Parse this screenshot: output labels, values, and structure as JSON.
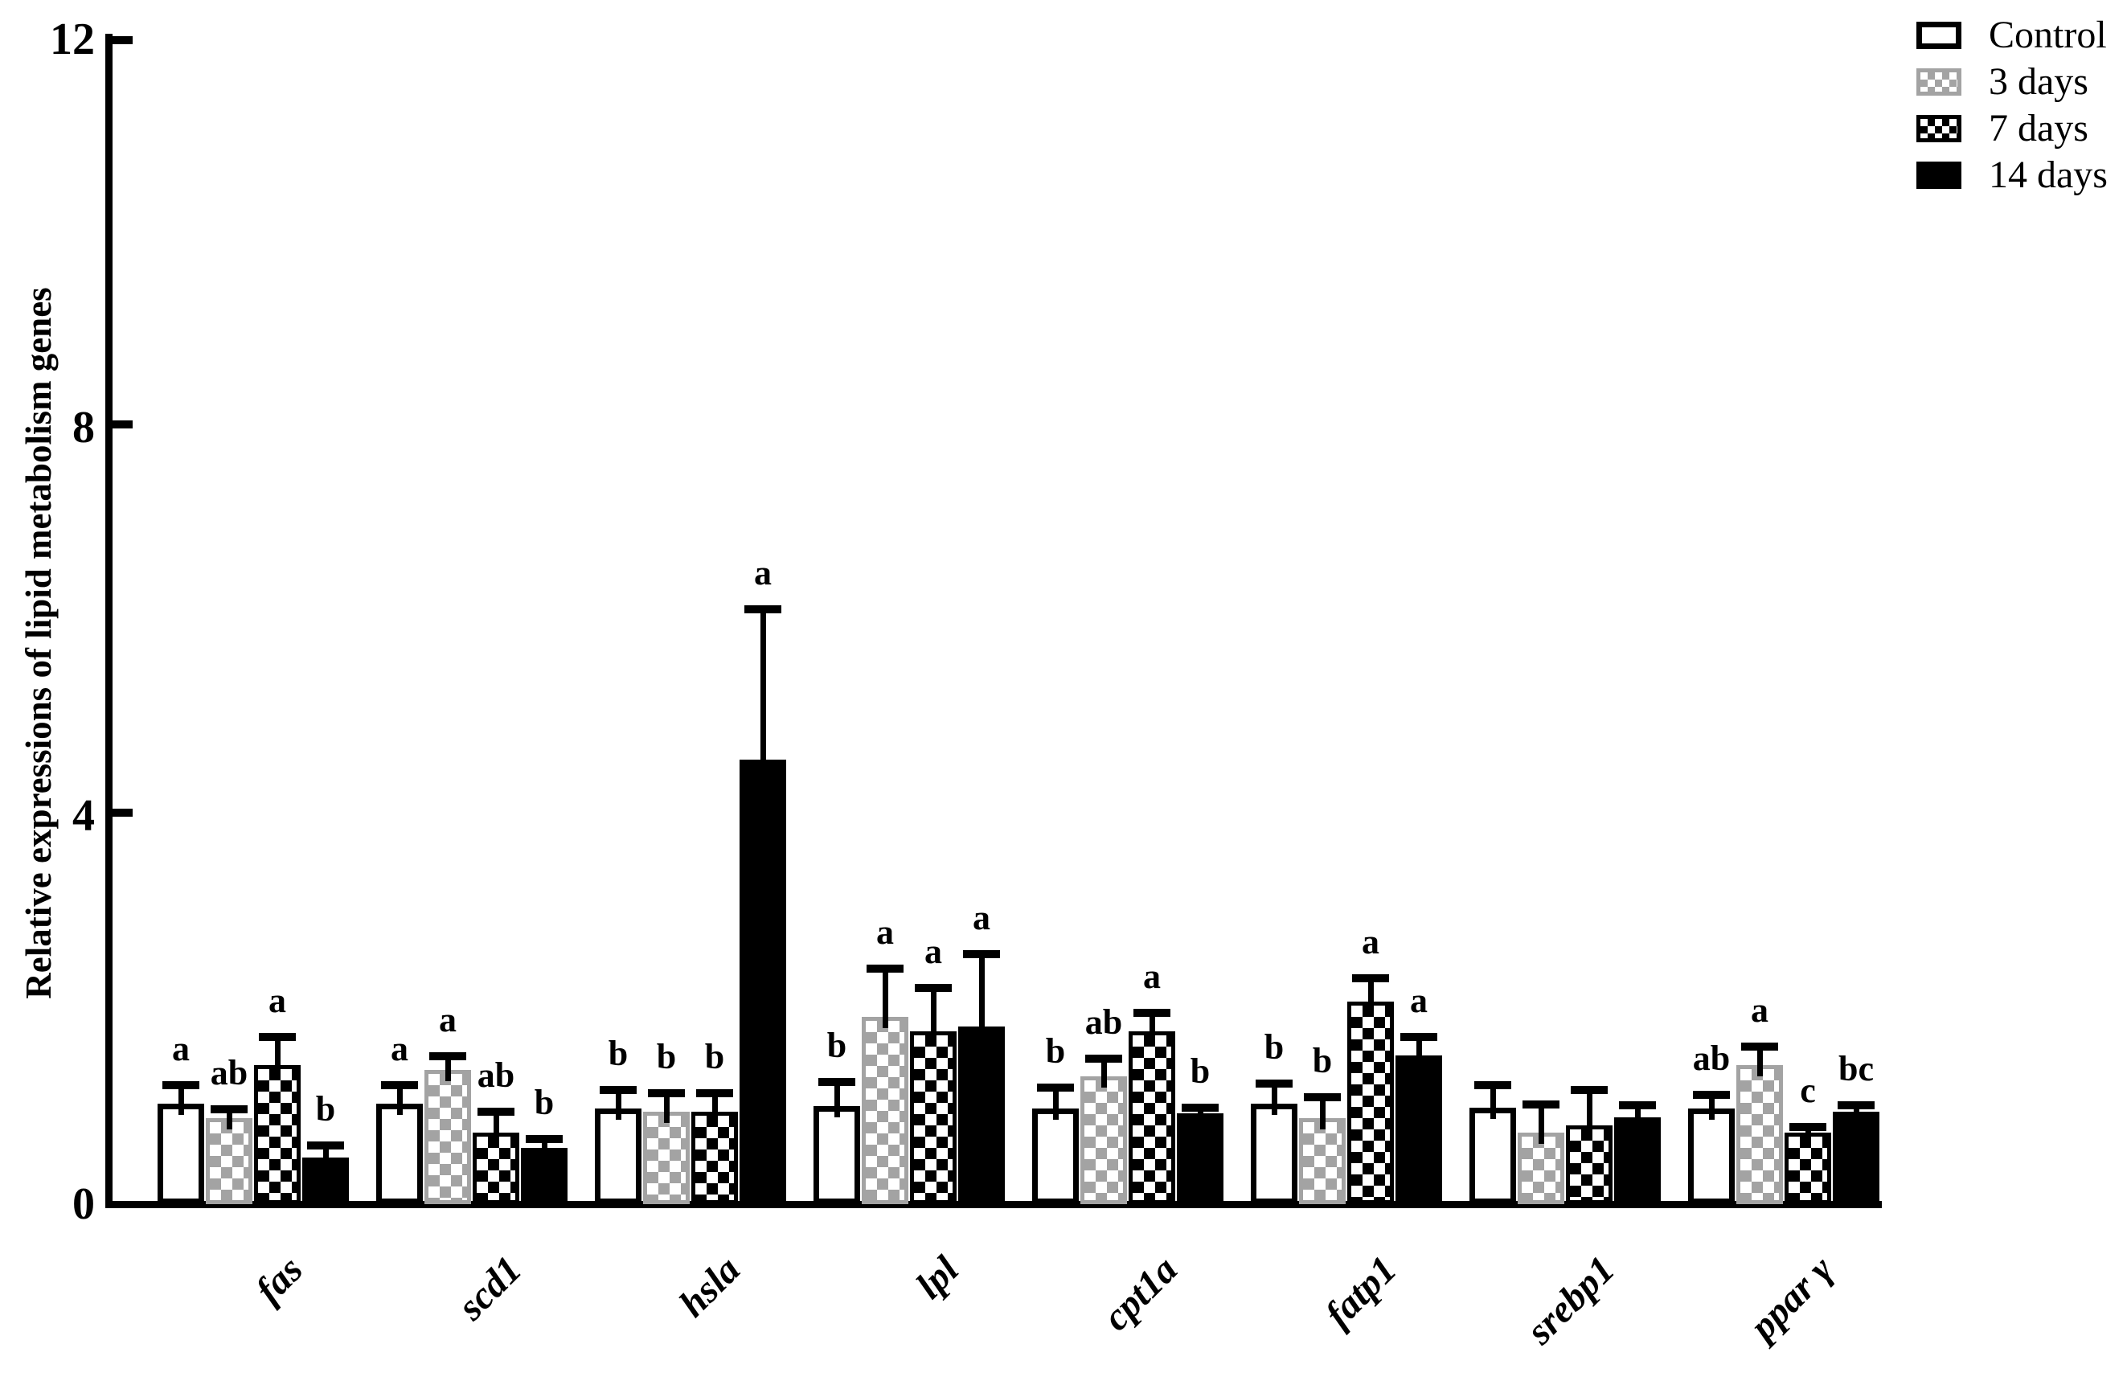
{
  "figure": {
    "background": "#ffffff",
    "accent_black": "#000000",
    "pattern_gray": "#a3a3a3"
  },
  "chart_data": {
    "type": "bar",
    "title": "",
    "xlabel": "",
    "ylabel": "Relative expressions of lipid metabolism genes",
    "ylim": [
      0,
      12
    ],
    "yticks": [
      0,
      4,
      8,
      12
    ],
    "grid": false,
    "legend_position": "top-right",
    "categories": [
      "fas",
      "scd1",
      "hsla",
      "lpl",
      "cpt1a",
      "fatp1",
      "srebp1",
      "ppar γ"
    ],
    "series": [
      {
        "name": "Control",
        "pattern": "white",
        "values": [
          1.0,
          1.0,
          0.95,
          0.98,
          0.95,
          1.0,
          0.96,
          0.95
        ],
        "error_tops": [
          1.2,
          1.2,
          1.15,
          1.23,
          1.18,
          1.22,
          1.2,
          1.1
        ],
        "letters": [
          "a",
          "a",
          "b",
          "b",
          "b",
          "b",
          "",
          "ab"
        ]
      },
      {
        "name": "3 days",
        "pattern": "gray-checker",
        "values": [
          0.85,
          1.35,
          0.92,
          1.9,
          1.28,
          0.85,
          0.7,
          1.4
        ],
        "error_tops": [
          0.95,
          1.5,
          1.12,
          2.4,
          1.47,
          1.08,
          1.0,
          1.6
        ],
        "letters": [
          "ab",
          "a",
          "b",
          "a",
          "ab",
          "b",
          "",
          "a"
        ]
      },
      {
        "name": "7 days",
        "pattern": "black-checker",
        "values": [
          1.4,
          0.7,
          0.92,
          1.75,
          1.75,
          2.05,
          0.78,
          0.7
        ],
        "error_tops": [
          1.7,
          0.93,
          1.12,
          2.2,
          1.95,
          2.3,
          1.15,
          0.77
        ],
        "letters": [
          "a",
          "ab",
          "b",
          "a",
          "a",
          "a",
          "",
          "c"
        ]
      },
      {
        "name": "14 days",
        "pattern": "black",
        "values": [
          0.45,
          0.55,
          4.55,
          1.8,
          0.9,
          1.5,
          0.86,
          0.92
        ],
        "error_tops": [
          0.58,
          0.65,
          6.1,
          2.55,
          0.97,
          1.7,
          0.99,
          0.99
        ],
        "letters": [
          "b",
          "b",
          "a",
          "a",
          "b",
          "a",
          "",
          "bc"
        ]
      }
    ]
  }
}
